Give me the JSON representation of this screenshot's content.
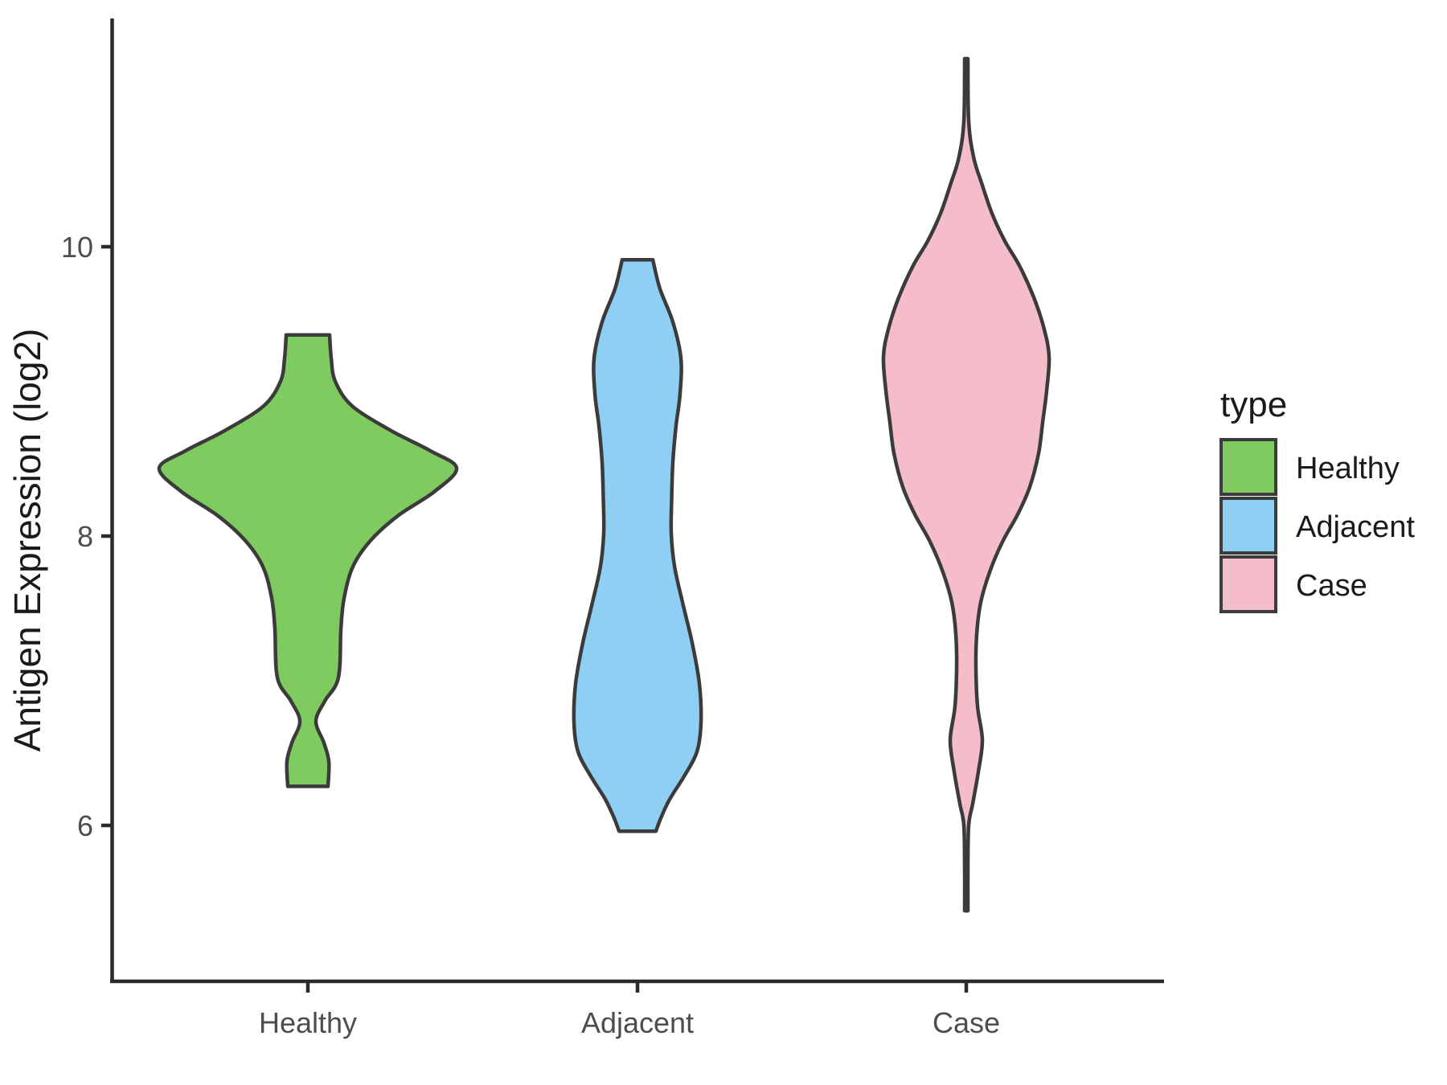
{
  "chart": {
    "y_axis": {
      "title": "Antigen Expression (log2)",
      "ticks": [
        "10",
        "8",
        "6"
      ]
    },
    "x_axis": {
      "ticks": [
        "Healthy",
        "Adjacent",
        "Case"
      ]
    },
    "legend": {
      "title": "type",
      "entries": [
        {
          "label": "Healthy",
          "color": "#7FCB5F"
        },
        {
          "label": "Adjacent",
          "color": "#90CFF4"
        },
        {
          "label": "Case",
          "color": "#F4BDC9"
        }
      ]
    },
    "outline_color": "#3B3B3B",
    "axis_color": "#2B2B2B",
    "tick_label_color": "#4D4D4D",
    "background_color": "#FFFFFF"
  },
  "chart_data": {
    "type": "violin",
    "title": "",
    "xlabel": "",
    "ylabel": "Antigen Expression (log2)",
    "categories": [
      "Healthy",
      "Adjacent",
      "Case"
    ],
    "y_ticks": [
      6,
      8,
      10
    ],
    "ylim": [
      5.2,
      11.45
    ],
    "grid": false,
    "legend_position": "right",
    "legend_title": "type",
    "series": [
      {
        "name": "Healthy",
        "color": "#7FCB5F",
        "min": 6.27,
        "max": 9.39,
        "widest_at": 8.47,
        "profile": [
          [
            9.39,
            0.146
          ],
          [
            9.23,
            0.157
          ],
          [
            9.07,
            0.184
          ],
          [
            8.9,
            0.297
          ],
          [
            8.73,
            0.557
          ],
          [
            8.59,
            0.822
          ],
          [
            8.47,
            1.0
          ],
          [
            8.31,
            0.854
          ],
          [
            8.14,
            0.605
          ],
          [
            7.97,
            0.422
          ],
          [
            7.79,
            0.303
          ],
          [
            7.57,
            0.243
          ],
          [
            7.36,
            0.222
          ],
          [
            7.02,
            0.205
          ],
          [
            6.86,
            0.114
          ],
          [
            6.72,
            0.054
          ],
          [
            6.57,
            0.108
          ],
          [
            6.44,
            0.141
          ],
          [
            6.27,
            0.135
          ]
        ]
      },
      {
        "name": "Adjacent",
        "color": "#90CFF4",
        "min": 5.96,
        "max": 9.91,
        "widest_at": 6.71,
        "profile": [
          [
            9.91,
            0.103
          ],
          [
            9.71,
            0.151
          ],
          [
            9.48,
            0.238
          ],
          [
            9.23,
            0.292
          ],
          [
            8.98,
            0.286
          ],
          [
            8.76,
            0.259
          ],
          [
            8.51,
            0.238
          ],
          [
            8.26,
            0.23
          ],
          [
            8.02,
            0.227
          ],
          [
            7.79,
            0.249
          ],
          [
            7.54,
            0.303
          ],
          [
            7.26,
            0.368
          ],
          [
            6.98,
            0.416
          ],
          [
            6.71,
            0.427
          ],
          [
            6.51,
            0.4
          ],
          [
            6.34,
            0.314
          ],
          [
            6.18,
            0.216
          ],
          [
            6.05,
            0.157
          ],
          [
            5.96,
            0.124
          ]
        ]
      },
      {
        "name": "Case",
        "color": "#F4BDC9",
        "min": 5.41,
        "max": 11.3,
        "widest_at": 9.24,
        "profile": [
          [
            11.3,
            0.011
          ],
          [
            10.87,
            0.016
          ],
          [
            10.62,
            0.049
          ],
          [
            10.44,
            0.103
          ],
          [
            10.23,
            0.173
          ],
          [
            10.04,
            0.259
          ],
          [
            9.87,
            0.357
          ],
          [
            9.65,
            0.454
          ],
          [
            9.43,
            0.524
          ],
          [
            9.24,
            0.557
          ],
          [
            9.01,
            0.541
          ],
          [
            8.79,
            0.514
          ],
          [
            8.57,
            0.486
          ],
          [
            8.34,
            0.427
          ],
          [
            8.15,
            0.346
          ],
          [
            7.96,
            0.243
          ],
          [
            7.75,
            0.157
          ],
          [
            7.54,
            0.097
          ],
          [
            7.32,
            0.07
          ],
          [
            7.09,
            0.065
          ],
          [
            6.82,
            0.076
          ],
          [
            6.59,
            0.108
          ],
          [
            6.37,
            0.081
          ],
          [
            6.15,
            0.043
          ],
          [
            6.0,
            0.016
          ],
          [
            5.7,
            0.011
          ],
          [
            5.41,
            0.011
          ]
        ]
      }
    ]
  }
}
